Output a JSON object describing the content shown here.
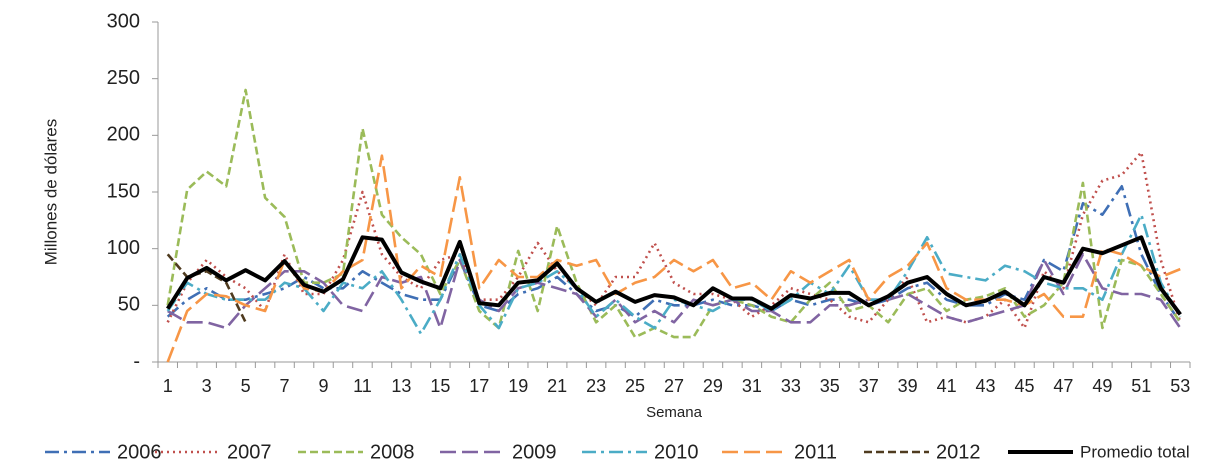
{
  "chart_data": {
    "type": "line",
    "y_label": "Millones de dólares",
    "x_label": "Semana",
    "categories": [
      "1",
      null,
      "3",
      null,
      "5",
      null,
      "7",
      null,
      "9",
      null,
      "11",
      null,
      "13",
      null,
      "15",
      null,
      "17",
      null,
      "19",
      null,
      "21",
      null,
      "23",
      null,
      "25",
      null,
      "27",
      null,
      "29",
      null,
      "31",
      null,
      "33",
      null,
      "35",
      null,
      "37",
      null,
      "39",
      null,
      "41",
      null,
      "43",
      null,
      "45",
      null,
      "47",
      null,
      "49",
      null,
      "51",
      null,
      "53"
    ],
    "ylim": [
      0,
      300
    ],
    "yticks": [
      {
        "value": 0,
        "label": "-"
      },
      50,
      100,
      150,
      200,
      250,
      300
    ],
    "grid": false,
    "legend": "bottom",
    "series": [
      {
        "name": "2006",
        "color": "#3f6fb5",
        "dash": "dashdot",
        "values": [
          40,
          55,
          65,
          55,
          55,
          60,
          65,
          75,
          65,
          65,
          80,
          70,
          60,
          55,
          55,
          90,
          50,
          45,
          60,
          65,
          75,
          60,
          45,
          50,
          40,
          55,
          50,
          50,
          55,
          50,
          50,
          45,
          55,
          50,
          55,
          55,
          50,
          55,
          65,
          70,
          55,
          50,
          50,
          60,
          55,
          90,
          80,
          140,
          130,
          155,
          95,
          60,
          35
        ]
      },
      {
        "name": "2007",
        "color": "#c0504d",
        "dash": "dot",
        "values": [
          35,
          70,
          90,
          75,
          65,
          45,
          95,
          60,
          60,
          90,
          150,
          95,
          75,
          65,
          90,
          95,
          55,
          55,
          75,
          105,
          80,
          65,
          50,
          75,
          75,
          105,
          70,
          60,
          60,
          55,
          40,
          50,
          65,
          60,
          55,
          40,
          35,
          55,
          75,
          35,
          40,
          35,
          40,
          55,
          30,
          80,
          65,
          130,
          160,
          165,
          185,
          90,
          35
        ]
      },
      {
        "name": "2008",
        "color": "#9bbb59",
        "dash": "dash",
        "values": [
          50,
          152,
          168,
          155,
          240,
          145,
          128,
          70,
          70,
          78,
          206,
          130,
          110,
          95,
          60,
          90,
          45,
          30,
          98,
          45,
          120,
          70,
          35,
          50,
          22,
          30,
          22,
          22,
          50,
          55,
          50,
          40,
          35,
          55,
          70,
          45,
          50,
          35,
          60,
          65,
          45,
          55,
          58,
          65,
          40,
          50,
          70,
          158,
          30,
          90,
          85,
          60,
          35
        ]
      },
      {
        "name": "2009",
        "color": "#8064a2",
        "dash": "longdash",
        "values": [
          45,
          35,
          35,
          30,
          50,
          65,
          80,
          80,
          70,
          50,
          45,
          75,
          70,
          75,
          30,
          90,
          55,
          45,
          65,
          70,
          65,
          60,
          40,
          55,
          35,
          45,
          35,
          55,
          50,
          55,
          45,
          45,
          35,
          35,
          50,
          50,
          55,
          55,
          60,
          50,
          40,
          35,
          40,
          45,
          50,
          90,
          60,
          95,
          65,
          60,
          60,
          55,
          30
        ]
      },
      {
        "name": "2010",
        "color": "#4bacc6",
        "dash": "dashdot",
        "values": [
          45,
          70,
          60,
          55,
          55,
          55,
          70,
          65,
          45,
          70,
          65,
          80,
          55,
          25,
          55,
          95,
          50,
          30,
          65,
          70,
          80,
          65,
          40,
          55,
          40,
          30,
          55,
          50,
          45,
          55,
          55,
          45,
          55,
          70,
          60,
          85,
          55,
          55,
          80,
          110,
          78,
          75,
          72,
          85,
          80,
          70,
          65,
          65,
          55,
          95,
          130,
          70,
          40
        ]
      },
      {
        "name": "2011",
        "color": "#f79646",
        "dash": "longdash",
        "values": [
          0,
          45,
          60,
          58,
          50,
          45,
          90,
          65,
          62,
          80,
          90,
          182,
          65,
          85,
          75,
          163,
          65,
          90,
          75,
          75,
          90,
          85,
          90,
          60,
          70,
          75,
          90,
          80,
          90,
          65,
          70,
          55,
          80,
          70,
          80,
          90,
          55,
          75,
          85,
          105,
          65,
          55,
          55,
          55,
          50,
          60,
          40,
          40,
          100,
          95,
          85,
          75,
          82
        ]
      },
      {
        "name": "2012",
        "color": "#4f3b1f",
        "dash": "dash",
        "values": [
          95,
          75,
          80,
          70,
          35,
          null,
          null,
          null,
          null,
          null,
          null,
          null,
          null,
          null,
          null,
          null,
          null,
          null,
          null,
          null,
          null,
          null,
          null,
          null,
          null,
          null,
          null,
          null,
          null,
          null,
          null,
          null,
          null,
          null,
          null,
          null,
          null,
          null,
          null,
          null,
          null,
          null,
          null,
          null,
          null,
          null,
          null,
          null,
          null,
          null,
          null,
          null,
          null
        ]
      },
      {
        "name": "Promedio total",
        "color": "#000000",
        "dash": "solid",
        "values": [
          47,
          74,
          83,
          72,
          81,
          72,
          89,
          68,
          62,
          73,
          110,
          108,
          79,
          71,
          65,
          106,
          52,
          50,
          70,
          72,
          87,
          65,
          53,
          62,
          53,
          59,
          57,
          50,
          65,
          56,
          56,
          47,
          59,
          56,
          61,
          61,
          50,
          58,
          70,
          75,
          60,
          50,
          54,
          62,
          50,
          75,
          70,
          100,
          96,
          103,
          110,
          65,
          42
        ]
      }
    ]
  }
}
